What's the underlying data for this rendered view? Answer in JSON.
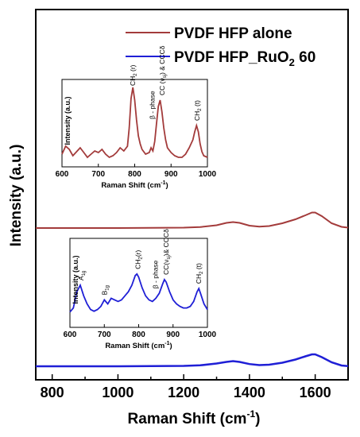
{
  "chart_data": {
    "type": "line",
    "xlabel": "Raman Shift (cm",
    "xlabel_sup": "-1",
    "xlabel_close": ")",
    "ylabel": "Intensity (a.u.)",
    "xlim": [
      750,
      1700
    ],
    "xticks": [
      800,
      1000,
      1200,
      1400,
      1600
    ],
    "grid": false,
    "legend_position": "top-right",
    "series": [
      {
        "name": "PVDF HFP alone",
        "legend_parts": [
          "PVDF HFP alone"
        ],
        "color": "#a33b3b",
        "x": [
          750,
          900,
          1000,
          1100,
          1200,
          1250,
          1300,
          1330,
          1350,
          1370,
          1400,
          1430,
          1460,
          1500,
          1540,
          1570,
          1590,
          1600,
          1620,
          1650,
          1680,
          1700
        ],
        "y": [
          0,
          0,
          0,
          0.2,
          0.5,
          1.2,
          3.5,
          6.5,
          7.5,
          6.5,
          3.0,
          1.8,
          2.5,
          6.0,
          11.0,
          16.0,
          19.5,
          19.5,
          15.0,
          6.0,
          1.5,
          0.5
        ]
      },
      {
        "name": "PVDF HFP_RuO2 60",
        "legend_parts": [
          "PVDF HFP_RuO",
          "2",
          " 60"
        ],
        "color": "#1f1fd6",
        "x": [
          750,
          900,
          1000,
          1100,
          1200,
          1250,
          1300,
          1330,
          1350,
          1370,
          1400,
          1430,
          1460,
          1500,
          1540,
          1570,
          1590,
          1600,
          1620,
          1650,
          1680,
          1700
        ],
        "y": [
          0,
          0,
          0,
          0.2,
          0.5,
          1.2,
          3.5,
          5.5,
          6.5,
          5.5,
          2.8,
          1.5,
          2.0,
          4.5,
          8.5,
          12.5,
          15.0,
          15.0,
          11.5,
          5.0,
          1.0,
          0.3
        ]
      }
    ],
    "insets": [
      {
        "type": "line",
        "for_series": "PVDF HFP alone",
        "xlabel": "Raman Shift (cm",
        "xlabel_sup": "-1",
        "xlabel_close": ")",
        "ylabel": "Intensity (a.u.)",
        "xlim": [
          600,
          1000
        ],
        "xticks": [
          600,
          700,
          800,
          900,
          1000
        ],
        "color": "#a33b3b",
        "x": [
          600,
          610,
          620,
          630,
          640,
          650,
          660,
          670,
          680,
          690,
          700,
          710,
          720,
          730,
          740,
          750,
          760,
          770,
          780,
          785,
          790,
          795,
          800,
          805,
          810,
          815,
          820,
          830,
          840,
          845,
          850,
          855,
          860,
          865,
          870,
          875,
          880,
          885,
          890,
          900,
          910,
          920,
          930,
          940,
          950,
          960,
          965,
          970,
          975,
          980,
          985,
          990,
          1000
        ],
        "y": [
          12,
          22,
          18,
          10,
          15,
          20,
          14,
          8,
          12,
          16,
          14,
          18,
          12,
          8,
          10,
          14,
          20,
          16,
          22,
          45,
          82,
          96,
          80,
          55,
          35,
          25,
          18,
          12,
          14,
          20,
          16,
          28,
          50,
          72,
          80,
          65,
          45,
          30,
          20,
          14,
          10,
          8,
          8,
          12,
          20,
          30,
          40,
          48,
          40,
          25,
          15,
          10,
          8
        ],
        "annotations": [
          {
            "text": "CH",
            "sub": "2",
            "tail": " (r)",
            "x": 795
          },
          {
            "text": "β - phase",
            "sub": "",
            "tail": "",
            "x": 848
          },
          {
            "text": "CC (ν",
            "sub": "sj",
            "tail": ") & CCCδ",
            "x": 875
          },
          {
            "text": "CH",
            "sub": "2",
            "tail": " (t)",
            "x": 972
          }
        ]
      },
      {
        "type": "line",
        "for_series": "PVDF HFP_RuO2 60",
        "xlabel": "Raman Shift (cm",
        "xlabel_sup": "-1",
        "xlabel_close": ")",
        "ylabel": "Intensity (a.u.)",
        "xlim": [
          600,
          1000
        ],
        "xticks": [
          600,
          700,
          800,
          900,
          1000
        ],
        "color": "#1f1fd6",
        "x": [
          600,
          610,
          620,
          630,
          640,
          650,
          660,
          670,
          680,
          690,
          700,
          710,
          720,
          730,
          740,
          750,
          760,
          770,
          780,
          790,
          795,
          800,
          810,
          820,
          830,
          840,
          850,
          860,
          870,
          875,
          880,
          890,
          900,
          910,
          920,
          930,
          940,
          950,
          960,
          970,
          975,
          980,
          990,
          1000
        ],
        "y": [
          15,
          20,
          40,
          48,
          35,
          25,
          18,
          16,
          18,
          22,
          30,
          25,
          32,
          30,
          28,
          30,
          35,
          40,
          48,
          60,
          62,
          58,
          45,
          35,
          30,
          28,
          32,
          38,
          50,
          55,
          52,
          40,
          30,
          25,
          22,
          20,
          20,
          22,
          28,
          40,
          44,
          38,
          25,
          18
        ],
        "annotations": [
          {
            "text": "A",
            "sub": "1g",
            "tail": "",
            "x": 632
          },
          {
            "text": "B",
            "sub": "1g",
            "tail": "",
            "x": 700
          },
          {
            "text": "CH",
            "sub": "2",
            "tail": "(r)",
            "x": 798
          },
          {
            "text": "β - phase",
            "sub": "",
            "tail": "",
            "x": 848
          },
          {
            "text": "CC(ν",
            "sub": "sj",
            "tail": ")& CCCδ",
            "x": 880
          },
          {
            "text": "CH",
            "sub": "2",
            "tail": " (t)",
            "x": 975
          }
        ]
      }
    ]
  }
}
